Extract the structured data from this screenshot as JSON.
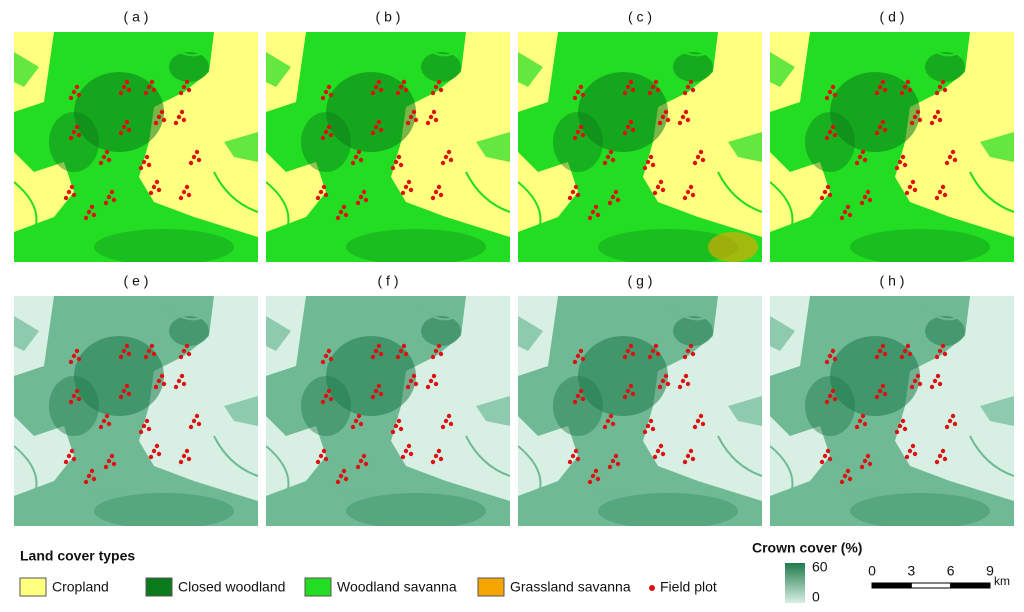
{
  "panels": {
    "labels": [
      "( a )",
      "( b )",
      "( c )",
      "( d )",
      "( e )",
      "( f )",
      "( g )",
      "( h )"
    ]
  },
  "legend": {
    "title": "Land cover types",
    "items": [
      {
        "label": "Cropland",
        "color": "#ffff80"
      },
      {
        "label": "Closed woodland",
        "color": "#0a7a1a"
      },
      {
        "label": "Woodland savanna",
        "color": "#22dd22"
      },
      {
        "label": "Grassland savanna",
        "color": "#f5a500"
      }
    ],
    "field_plot": {
      "label": "Field plot",
      "color": "#dd1111"
    }
  },
  "crown_cover": {
    "title": "Crown cover (%)",
    "max": 60,
    "min": 0,
    "color_max": "#1e7a4a",
    "color_min": "#d8f0e4"
  },
  "scale_bar": {
    "ticks": [
      0,
      3,
      6,
      9
    ],
    "unit": "km"
  }
}
